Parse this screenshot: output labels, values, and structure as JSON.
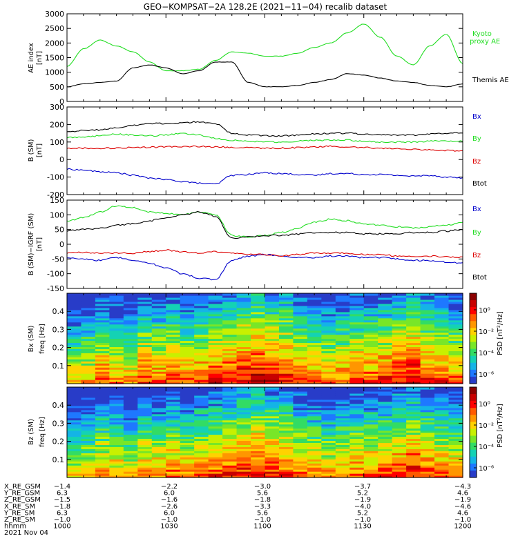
{
  "title": "GEO−KOMPSAT−2A 128.2E (2021−11−04) recalib dataset",
  "colors": {
    "black": "#000000",
    "green": "#22dd22",
    "blue": "#0000cc",
    "red": "#dd0000",
    "kyoto": "#22dd22"
  },
  "chart_data": [
    {
      "type": "line",
      "panel": "ae",
      "ylabel": "AE index [nT]",
      "ylim": [
        0,
        3000
      ],
      "yticks": [
        0,
        500,
        1000,
        1500,
        2000,
        2500,
        3000
      ],
      "x": [
        0,
        5,
        10,
        15,
        20,
        25,
        30,
        35,
        40,
        45,
        50,
        55,
        60,
        65,
        70,
        75,
        80,
        85,
        90,
        95,
        100,
        105,
        110,
        115,
        120
      ],
      "series": [
        {
          "name": "Kyoto proxy AE",
          "color": "#22dd22",
          "values": [
            1200,
            1800,
            2100,
            1900,
            1700,
            1350,
            1050,
            1050,
            1100,
            1400,
            1700,
            1650,
            1550,
            1550,
            1650,
            1850,
            2000,
            2350,
            2650,
            2200,
            1550,
            1250,
            1900,
            2300,
            1300
          ]
        },
        {
          "name": "Themis AE",
          "color": "#000000",
          "values": [
            500,
            600,
            650,
            700,
            1150,
            1250,
            1150,
            950,
            1050,
            1350,
            1350,
            650,
            500,
            500,
            550,
            650,
            750,
            950,
            900,
            800,
            700,
            650,
            550,
            500,
            600
          ]
        }
      ]
    },
    {
      "type": "line",
      "panel": "bsm",
      "ylabel": "B (SM) [nT]",
      "ylim": [
        -200,
        300
      ],
      "yticks": [
        -200,
        -100,
        0,
        100,
        200,
        300
      ],
      "x": [
        0,
        5,
        10,
        15,
        20,
        25,
        30,
        35,
        40,
        45,
        50,
        55,
        60,
        65,
        70,
        75,
        80,
        85,
        90,
        95,
        100,
        105,
        110,
        115,
        120
      ],
      "series": [
        {
          "name": "Bx",
          "color": "#0000cc",
          "values": [
            -55,
            -60,
            -70,
            -75,
            -90,
            -105,
            -115,
            -125,
            -135,
            -140,
            -90,
            -85,
            -75,
            -80,
            -85,
            -90,
            -80,
            -80,
            -85,
            -85,
            -90,
            -95,
            -90,
            -100,
            -105
          ]
        },
        {
          "name": "By",
          "color": "#22dd22",
          "values": [
            125,
            130,
            135,
            145,
            140,
            135,
            140,
            150,
            140,
            120,
            110,
            105,
            100,
            100,
            105,
            110,
            110,
            110,
            105,
            100,
            100,
            100,
            105,
            105,
            105
          ]
        },
        {
          "name": "Bz",
          "color": "#dd0000",
          "values": [
            65,
            65,
            65,
            65,
            68,
            70,
            72,
            75,
            75,
            72,
            70,
            68,
            65,
            65,
            68,
            72,
            75,
            72,
            68,
            65,
            60,
            58,
            55,
            52,
            50
          ]
        },
        {
          "name": "Btot",
          "color": "#000000",
          "values": [
            160,
            165,
            170,
            180,
            195,
            205,
            205,
            210,
            215,
            205,
            150,
            140,
            135,
            135,
            140,
            145,
            150,
            150,
            145,
            140,
            140,
            140,
            145,
            150,
            155
          ]
        }
      ]
    },
    {
      "type": "line",
      "panel": "bigrf",
      "ylabel": "B (SM)−IGRF (SM) [nT]",
      "ylim": [
        -150,
        150
      ],
      "yticks": [
        -150,
        -100,
        -50,
        0,
        50,
        100,
        150
      ],
      "x": [
        0,
        5,
        10,
        15,
        20,
        25,
        30,
        35,
        40,
        45,
        50,
        55,
        60,
        65,
        70,
        75,
        80,
        85,
        90,
        95,
        100,
        105,
        110,
        115,
        120
      ],
      "series": [
        {
          "name": "Bx",
          "color": "#0000cc",
          "values": [
            -45,
            -50,
            -55,
            -45,
            -55,
            -65,
            -80,
            -100,
            -115,
            -120,
            -55,
            -40,
            -35,
            -40,
            -45,
            -45,
            -40,
            -40,
            -45,
            -45,
            -50,
            -55,
            -55,
            -60,
            -65
          ]
        },
        {
          "name": "By",
          "color": "#22dd22",
          "values": [
            80,
            90,
            110,
            130,
            125,
            110,
            105,
            100,
            110,
            100,
            30,
            25,
            30,
            40,
            55,
            75,
            85,
            80,
            70,
            65,
            60,
            55,
            60,
            65,
            75
          ]
        },
        {
          "name": "Bz",
          "color": "#dd0000",
          "values": [
            -30,
            -28,
            -30,
            -30,
            -30,
            -25,
            -20,
            -25,
            -30,
            -25,
            -30,
            -35,
            -35,
            -40,
            -35,
            -30,
            -30,
            -30,
            -35,
            -35,
            -40,
            -40,
            -40,
            -42,
            -45
          ]
        },
        {
          "name": "Btot",
          "color": "#000000",
          "values": [
            45,
            50,
            55,
            65,
            70,
            80,
            90,
            100,
            110,
            95,
            20,
            25,
            30,
            30,
            35,
            40,
            40,
            40,
            35,
            35,
            35,
            40,
            40,
            45,
            50
          ]
        }
      ]
    },
    {
      "type": "heatmap",
      "panel": "specx",
      "ylabel": "freq [Hz]",
      "plabel": "Bx (SM)",
      "ylim": [
        0,
        0.5
      ],
      "yticks": [
        0.1,
        0.2,
        0.3,
        0.4
      ],
      "colorbar": {
        "label": "PSD [nT²/Hz]",
        "ticks": [
          "10⁰",
          "10⁻²",
          "10⁻⁴",
          "10⁻⁶"
        ]
      }
    },
    {
      "type": "heatmap",
      "panel": "specz",
      "ylabel": "freq [Hz]",
      "plabel": "Bz (SM)",
      "ylim": [
        0,
        0.5
      ],
      "yticks": [
        0.1,
        0.2,
        0.3,
        0.4
      ],
      "colorbar": {
        "label": "PSD [nT²/Hz]",
        "ticks": [
          "10⁰",
          "10⁻²",
          "10⁻⁴",
          "10⁻⁶"
        ]
      }
    }
  ],
  "legends": {
    "ae": [
      [
        "Kyoto",
        "proxy AE"
      ],
      [
        "Themis AE"
      ]
    ],
    "bsm": [
      "Bx",
      "By",
      "Bz",
      "Btot"
    ],
    "bigrf": [
      "Bx",
      "By",
      "Bz",
      "Btot"
    ]
  },
  "ylabels": {
    "ae1": "AE index",
    "ae2": "[nT]",
    "bsm1": "B (SM)",
    "bsm2": "[nT]",
    "bigrf1": "B (SM)−IGRF (SM)",
    "bigrf2": "[nT]"
  },
  "ephem": {
    "row_labels": [
      "X_RE_GSM",
      "Y_RE_GSM",
      "Z_RE_GSM",
      "X_RE_SM",
      "Y_RE_SM",
      "Z_RE_SM",
      "hhmm",
      "2021 Nov 04"
    ],
    "columns": [
      [
        "−1.4",
        "6.3",
        "−1.5",
        "−1.8",
        "6.3",
        "−1.0",
        "1000"
      ],
      [
        "−2.2",
        "6.0",
        "−1.6",
        "−2.6",
        "6.0",
        "−1.0",
        "1030"
      ],
      [
        "−3.0",
        "5.6",
        "−1.8",
        "−3.3",
        "5.6",
        "−1.0",
        "1100"
      ],
      [
        "−3.7",
        "5.2",
        "−1.9",
        "−4.0",
        "5.2",
        "−1.0",
        "1130"
      ],
      [
        "−4.3",
        "4.6",
        "−1.9",
        "−4.6",
        "4.6",
        "−1.0",
        "1200"
      ]
    ]
  }
}
